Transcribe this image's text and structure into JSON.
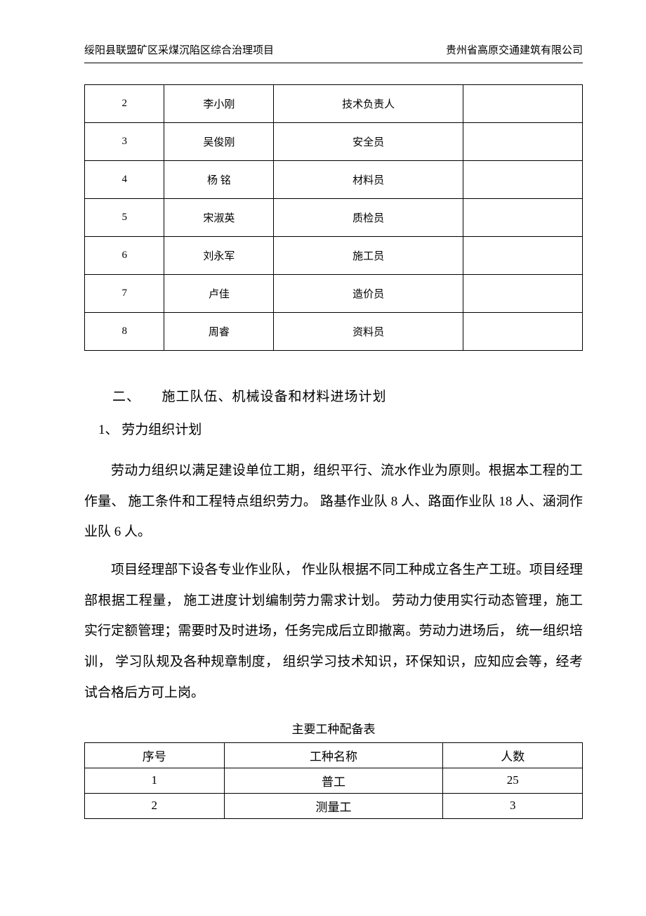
{
  "header": {
    "left": "绥阳县联盟矿区采煤沉陷区综合治理项目",
    "right": "贵州省高原交通建筑有限公司"
  },
  "personnel": {
    "rows": [
      {
        "no": "2",
        "name": "李小刚",
        "role": "技术负责人",
        "note": ""
      },
      {
        "no": "3",
        "name": "吴俊刚",
        "role": "安全员",
        "note": ""
      },
      {
        "no": "4",
        "name": "杨  铭",
        "role": "材料员",
        "note": ""
      },
      {
        "no": "5",
        "name": "宋淑英",
        "role": "质检员",
        "note": ""
      },
      {
        "no": "6",
        "name": "刘永军",
        "role": "施工员",
        "note": ""
      },
      {
        "no": "7",
        "name": "卢佳",
        "role": "造价员",
        "note": ""
      },
      {
        "no": "8",
        "name": "周睿",
        "role": "资料员",
        "note": ""
      }
    ]
  },
  "section": {
    "heading": "二、　　施工队伍、机械设备和材料进场计划",
    "sub": "1、 劳力组织计划"
  },
  "paragraphs": {
    "p1": "劳动力组织以满足建设单位工期，组织平行、流水作业为原则。根据本工程的工作量、 施工条件和工程特点组织劳力。 路基作业队  8 人、路面作业队  18 人、涵洞作业队  6 人。",
    "p2": "项目经理部下设各专业作业队， 作业队根据不同工种成立各生产工班。项目经理部根据工程量， 施工进度计划编制劳力需求计划。 劳动力使用实行动态管理，施工实行定额管理；需要时及时进场，任务完成后立即撤离。劳动力进场后， 统一组织培训， 学习队规及各种规章制度， 组织学习技术知识，环保知识，应知应会等，经考试合格后方可上岗。"
  },
  "worktype": {
    "caption": "主要工种配备表",
    "headers": {
      "c1": "序号",
      "c2": "工种名称",
      "c3": "人数"
    },
    "rows": [
      {
        "no": "1",
        "name": "普工",
        "count": "25"
      },
      {
        "no": "2",
        "name": "测量工",
        "count": "3"
      }
    ]
  }
}
